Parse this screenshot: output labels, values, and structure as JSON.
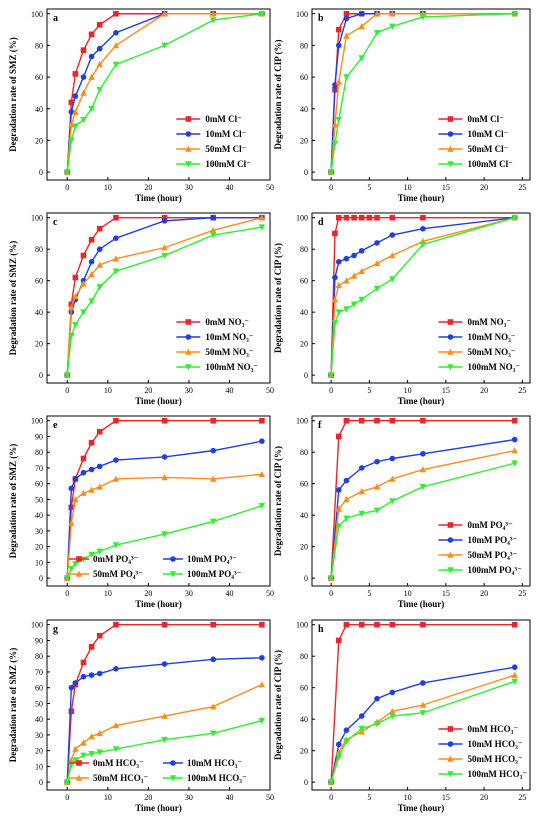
{
  "colors": {
    "red": "#e8262b",
    "blue": "#1f3fe0",
    "orange": "#ff8c19",
    "green": "#2cf22c"
  },
  "chart_data": [
    {
      "type": "line",
      "panel": "a",
      "xlabel": "Time (hour)",
      "ylabel": "Degradation rate of SMZ (%)",
      "xlim": [
        -5,
        50
      ],
      "ylim": [
        -5,
        103
      ],
      "xticks": [
        "0",
        "10",
        "20",
        "30",
        "40",
        "50"
      ],
      "yticks": [
        "0",
        "20",
        "40",
        "60",
        "80",
        "100"
      ],
      "legend_position": "lower-right",
      "legend_layout": "column",
      "series": [
        {
          "name": "0mM Cl⁻",
          "color": "red",
          "marker": "square",
          "x": [
            0,
            1,
            2,
            4,
            6,
            8,
            12,
            24,
            36,
            48
          ],
          "y": [
            0,
            44,
            62,
            77,
            87,
            93,
            100,
            100,
            100,
            100
          ]
        },
        {
          "name": "10mM Cl⁻",
          "color": "blue",
          "marker": "circle",
          "x": [
            0,
            1,
            2,
            4,
            6,
            8,
            12,
            24,
            36,
            48
          ],
          "y": [
            0,
            38,
            48,
            60,
            73,
            78,
            88,
            100,
            100,
            100
          ]
        },
        {
          "name": "50mM Cl⁻",
          "color": "orange",
          "marker": "triangle",
          "x": [
            0,
            1,
            2,
            4,
            6,
            8,
            12,
            24,
            36,
            48
          ],
          "y": [
            0,
            30,
            38,
            50,
            60,
            68,
            80,
            100,
            100,
            100
          ]
        },
        {
          "name": "100mM Cl⁻",
          "color": "green",
          "marker": "triangle-down",
          "x": [
            0,
            1,
            2,
            4,
            6,
            8,
            12,
            24,
            36,
            48
          ],
          "y": [
            0,
            20,
            29,
            33,
            40,
            52,
            68,
            80,
            96,
            100
          ]
        }
      ]
    },
    {
      "type": "line",
      "panel": "b",
      "xlabel": "Time (hour)",
      "ylabel": "Degradation rate of CIP (%)",
      "xlim": [
        -2.5,
        26
      ],
      "ylim": [
        -5,
        103
      ],
      "xticks": [
        "0",
        "5",
        "10",
        "15",
        "20",
        "25"
      ],
      "yticks": [
        "0",
        "20",
        "40",
        "60",
        "80",
        "100"
      ],
      "legend_position": "lower-right",
      "legend_layout": "column",
      "series": [
        {
          "name": "0mM Cl⁻",
          "color": "red",
          "marker": "square",
          "x": [
            0,
            0.5,
            1,
            2,
            4,
            6,
            8,
            12,
            24
          ],
          "y": [
            0,
            52,
            90,
            100,
            100,
            100,
            100,
            100,
            100
          ]
        },
        {
          "name": "10mM Cl⁻",
          "color": "blue",
          "marker": "circle",
          "x": [
            0,
            0.5,
            1,
            2,
            4,
            6,
            8,
            12,
            24
          ],
          "y": [
            0,
            55,
            80,
            97,
            100,
            100,
            100,
            100,
            100
          ]
        },
        {
          "name": "50mM Cl⁻",
          "color": "orange",
          "marker": "triangle",
          "x": [
            0,
            0.5,
            1,
            2,
            4,
            6,
            8,
            12,
            24
          ],
          "y": [
            0,
            30,
            57,
            86,
            92,
            100,
            100,
            100,
            100
          ]
        },
        {
          "name": "100mM Cl⁻",
          "color": "green",
          "marker": "triangle-down",
          "x": [
            0,
            0.5,
            1,
            2,
            4,
            6,
            8,
            12,
            24
          ],
          "y": [
            0,
            18,
            33,
            60,
            72,
            88,
            92,
            98,
            100
          ]
        }
      ]
    },
    {
      "type": "line",
      "panel": "c",
      "xlabel": "Time (hour)",
      "ylabel": "Degradation rate of SMZ (%)",
      "xlim": [
        -5,
        50
      ],
      "ylim": [
        -5,
        103
      ],
      "xticks": [
        "0",
        "10",
        "20",
        "30",
        "40",
        "50"
      ],
      "yticks": [
        "0",
        "20",
        "40",
        "60",
        "80",
        "100"
      ],
      "legend_position": "lower-right",
      "legend_layout": "column",
      "series": [
        {
          "name": "0mM NO₃⁻",
          "color": "red",
          "marker": "square",
          "x": [
            0,
            1,
            2,
            4,
            6,
            8,
            12,
            24,
            36,
            48
          ],
          "y": [
            0,
            45,
            62,
            76,
            86,
            93,
            100,
            100,
            100,
            100
          ]
        },
        {
          "name": "10mM NO₃⁻",
          "color": "blue",
          "marker": "circle",
          "x": [
            0,
            1,
            2,
            4,
            6,
            8,
            12,
            24,
            36,
            48
          ],
          "y": [
            0,
            40,
            48,
            60,
            72,
            80,
            87,
            98,
            100,
            100
          ]
        },
        {
          "name": "50mM NO₃⁻",
          "color": "orange",
          "marker": "triangle",
          "x": [
            0,
            1,
            2,
            4,
            6,
            8,
            12,
            24,
            36,
            48
          ],
          "y": [
            0,
            43,
            50,
            58,
            64,
            70,
            74,
            81,
            92,
            100
          ]
        },
        {
          "name": "100mM NO₃⁻",
          "color": "green",
          "marker": "triangle-down",
          "x": [
            0,
            1,
            2,
            4,
            6,
            8,
            12,
            24,
            36,
            48
          ],
          "y": [
            0,
            25,
            32,
            40,
            47,
            56,
            66,
            76,
            89,
            94
          ]
        }
      ]
    },
    {
      "type": "line",
      "panel": "d",
      "xlabel": "Time (hour)",
      "ylabel": "Degradation rate of CIP (%)",
      "xlim": [
        -2.5,
        26
      ],
      "ylim": [
        -5,
        103
      ],
      "xticks": [
        "0",
        "5",
        "10",
        "15",
        "20",
        "25"
      ],
      "yticks": [
        "0",
        "20",
        "40",
        "60",
        "80",
        "100"
      ],
      "legend_position": "lower-right",
      "legend_layout": "column",
      "series": [
        {
          "name": "0mM NO₃⁻",
          "color": "red",
          "marker": "square",
          "x": [
            0,
            0.5,
            1,
            2,
            3,
            4,
            5,
            6,
            8,
            12,
            24
          ],
          "y": [
            0,
            90,
            100,
            100,
            100,
            100,
            100,
            100,
            100,
            100,
            100
          ]
        },
        {
          "name": "10mM NO₃⁻",
          "color": "blue",
          "marker": "circle",
          "x": [
            0,
            0.5,
            1,
            2,
            3,
            4,
            6,
            8,
            12,
            24
          ],
          "y": [
            0,
            62,
            72,
            74,
            76,
            79,
            84,
            89,
            93,
            100
          ]
        },
        {
          "name": "50mM NO₃⁻",
          "color": "orange",
          "marker": "triangle",
          "x": [
            0,
            0.5,
            1,
            2,
            3,
            4,
            6,
            8,
            12,
            24
          ],
          "y": [
            0,
            48,
            57,
            60,
            63,
            66,
            71,
            76,
            85,
            100
          ]
        },
        {
          "name": "100mM NO₃⁻",
          "color": "green",
          "marker": "triangle-down",
          "x": [
            0,
            0.5,
            1,
            2,
            3,
            4,
            6,
            8,
            12,
            24
          ],
          "y": [
            0,
            33,
            40,
            42,
            45,
            48,
            55,
            61,
            83,
            100
          ]
        }
      ]
    },
    {
      "type": "line",
      "panel": "e",
      "xlabel": "Time (hour)",
      "ylabel": "Degradation rate of SMZ (%)",
      "xlim": [
        -5,
        50
      ],
      "ylim": [
        -5,
        103
      ],
      "xticks": [
        "0",
        "10",
        "20",
        "30",
        "40",
        "50"
      ],
      "yticks": [
        "0",
        "10",
        "20",
        "30",
        "40",
        "50",
        "60",
        "70",
        "80",
        "90",
        "100"
      ],
      "legend_position": "bottom",
      "legend_layout": "grid-2col",
      "series": [
        {
          "name": "0mM PO₄³⁻",
          "color": "red",
          "marker": "square",
          "x": [
            0,
            1,
            2,
            4,
            6,
            8,
            12,
            24,
            36,
            48
          ],
          "y": [
            0,
            45,
            63,
            76,
            86,
            93,
            100,
            100,
            100,
            100
          ]
        },
        {
          "name": "10mM PO₄³⁻",
          "color": "blue",
          "marker": "circle",
          "x": [
            0,
            1,
            2,
            4,
            6,
            8,
            12,
            24,
            36,
            48
          ],
          "y": [
            0,
            57,
            63,
            67,
            69,
            71,
            75,
            77,
            81,
            87
          ]
        },
        {
          "name": "50mM PO₄³⁻",
          "color": "orange",
          "marker": "triangle",
          "x": [
            0,
            1,
            2,
            4,
            6,
            8,
            12,
            24,
            36,
            48
          ],
          "y": [
            0,
            35,
            50,
            54,
            56,
            58,
            63,
            64,
            63,
            66
          ]
        },
        {
          "name": "100mM PO₄³⁻",
          "color": "green",
          "marker": "triangle-down",
          "x": [
            0,
            1,
            2,
            4,
            6,
            8,
            12,
            24,
            36,
            48
          ],
          "y": [
            0,
            6,
            9,
            12,
            15,
            17,
            21,
            28,
            36,
            46
          ]
        }
      ]
    },
    {
      "type": "line",
      "panel": "f",
      "xlabel": "Time (hour)",
      "ylabel": "Degradation rate of CIP (%)",
      "xlim": [
        -2.5,
        26
      ],
      "ylim": [
        -5,
        103
      ],
      "xticks": [
        "0",
        "5",
        "10",
        "15",
        "20",
        "25"
      ],
      "yticks": [
        "0",
        "20",
        "40",
        "60",
        "80",
        "100"
      ],
      "legend_position": "lower-right",
      "legend_layout": "column",
      "series": [
        {
          "name": "0mM PO₄³⁻",
          "color": "red",
          "marker": "square",
          "x": [
            0,
            1,
            2,
            4,
            6,
            8,
            12,
            24
          ],
          "y": [
            0,
            90,
            100,
            100,
            100,
            100,
            100,
            100
          ]
        },
        {
          "name": "10mM PO₄³⁻",
          "color": "blue",
          "marker": "circle",
          "x": [
            0,
            1,
            2,
            4,
            6,
            8,
            12,
            24
          ],
          "y": [
            0,
            56,
            62,
            70,
            74,
            76,
            79,
            88
          ]
        },
        {
          "name": "50mM PO₄³⁻",
          "color": "orange",
          "marker": "triangle",
          "x": [
            0,
            1,
            2,
            4,
            6,
            8,
            12,
            24
          ],
          "y": [
            0,
            44,
            50,
            55,
            58,
            63,
            69,
            81
          ]
        },
        {
          "name": "100mM PO₄³⁻",
          "color": "green",
          "marker": "triangle-down",
          "x": [
            0,
            1,
            2,
            4,
            6,
            8,
            12,
            24
          ],
          "y": [
            0,
            33,
            38,
            41,
            43,
            49,
            58,
            73
          ]
        }
      ]
    },
    {
      "type": "line",
      "panel": "g",
      "xlabel": "Time (hour)",
      "ylabel": "Degradation rate of SMZ (%)",
      "xlim": [
        -5,
        50
      ],
      "ylim": [
        -5,
        103
      ],
      "xticks": [
        "0",
        "10",
        "20",
        "30",
        "40",
        "50"
      ],
      "yticks": [
        "0",
        "10",
        "20",
        "30",
        "40",
        "50",
        "60",
        "70",
        "80",
        "90",
        "100"
      ],
      "legend_position": "bottom",
      "legend_layout": "grid-2col",
      "series": [
        {
          "name": "0mM HCO₃⁻",
          "color": "red",
          "marker": "square",
          "x": [
            0,
            1,
            2,
            4,
            6,
            8,
            12,
            24,
            36,
            48
          ],
          "y": [
            0,
            45,
            62,
            76,
            86,
            93,
            100,
            100,
            100,
            100
          ]
        },
        {
          "name": "10mM HCO₃⁻",
          "color": "blue",
          "marker": "circle",
          "x": [
            0,
            1,
            2,
            4,
            6,
            8,
            12,
            24,
            36,
            48
          ],
          "y": [
            0,
            60,
            63,
            67,
            68,
            69,
            72,
            75,
            78,
            79
          ]
        },
        {
          "name": "50mM HCO₃⁻",
          "color": "orange",
          "marker": "triangle",
          "x": [
            0,
            1,
            2,
            4,
            6,
            8,
            12,
            24,
            36,
            48
          ],
          "y": [
            0,
            14,
            21,
            25,
            29,
            31,
            36,
            42,
            48,
            62
          ]
        },
        {
          "name": "100mM HCO₃⁻",
          "color": "green",
          "marker": "triangle-down",
          "x": [
            0,
            1,
            2,
            4,
            6,
            8,
            12,
            24,
            36,
            48
          ],
          "y": [
            0,
            11,
            14,
            17,
            18,
            19,
            21,
            27,
            31,
            39
          ]
        }
      ]
    },
    {
      "type": "line",
      "panel": "h",
      "xlabel": "Time (hour)",
      "ylabel": "Degradation rate of CIP (%)",
      "xlim": [
        -2.5,
        26
      ],
      "ylim": [
        -5,
        103
      ],
      "xticks": [
        "0",
        "5",
        "10",
        "15",
        "20",
        "25"
      ],
      "yticks": [
        "0",
        "20",
        "40",
        "60",
        "80",
        "100"
      ],
      "legend_position": "lower-right",
      "legend_layout": "column",
      "series": [
        {
          "name": "0mM HCO₃⁻",
          "color": "red",
          "marker": "square",
          "x": [
            0,
            1,
            2,
            4,
            6,
            8,
            12,
            24
          ],
          "y": [
            0,
            90,
            100,
            100,
            100,
            100,
            100,
            100
          ]
        },
        {
          "name": "10mM HCO₃⁻",
          "color": "blue",
          "marker": "circle",
          "x": [
            0,
            1,
            2,
            4,
            6,
            8,
            12,
            24
          ],
          "y": [
            0,
            24,
            33,
            42,
            53,
            57,
            63,
            73
          ]
        },
        {
          "name": "50mM HCO₃⁻",
          "color": "orange",
          "marker": "triangle",
          "x": [
            0,
            1,
            2,
            4,
            6,
            8,
            12,
            24
          ],
          "y": [
            0,
            19,
            27,
            32,
            38,
            45,
            49,
            68
          ]
        },
        {
          "name": "100mM HCO₃⁻",
          "color": "green",
          "marker": "triangle-down",
          "x": [
            0,
            1,
            2,
            4,
            6,
            8,
            12,
            24
          ],
          "y": [
            0,
            16,
            26,
            34,
            37,
            42,
            44,
            64
          ]
        }
      ]
    }
  ]
}
